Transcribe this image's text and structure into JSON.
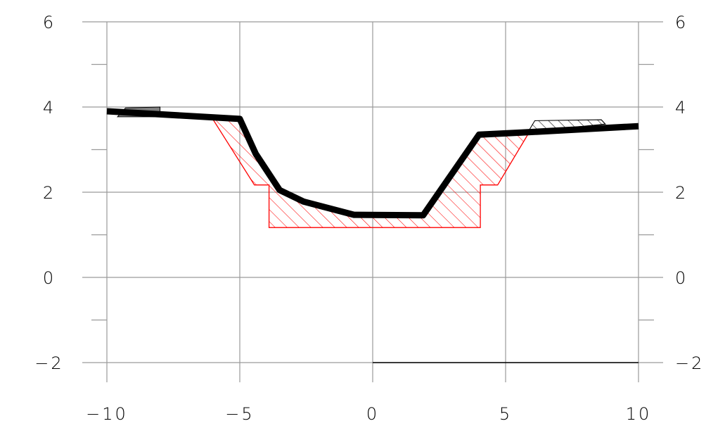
{
  "chart_data": {
    "type": "area",
    "title": "",
    "xlabel": "",
    "ylabel": "",
    "xlim": [
      -10,
      10
    ],
    "ylim": [
      -2,
      6
    ],
    "x_ticks": [
      {
        "value": -10,
        "label": "−10"
      },
      {
        "value": -5,
        "label": "−5"
      },
      {
        "value": 0,
        "label": "0"
      },
      {
        "value": 5,
        "label": "5"
      },
      {
        "value": 10,
        "label": "10"
      }
    ],
    "y_ticks": [
      {
        "value": -2,
        "label": "−2"
      },
      {
        "value": 0,
        "label": "0"
      },
      {
        "value": 2,
        "label": "2"
      },
      {
        "value": 4,
        "label": "4"
      },
      {
        "value": 6,
        "label": "6"
      }
    ],
    "y_minor_ticks": [
      -1,
      1,
      3,
      5
    ],
    "grid": true,
    "right_axis_labels": true,
    "colors": {
      "profile": "#000000",
      "cut_fill_hatch": "#ff0000",
      "embankment_hatch": "#000000",
      "gray_block": "#808080",
      "grid": "#9a9a9a"
    },
    "series": [
      {
        "kind": "profile-line",
        "x": [
          -10,
          -5.0,
          -4.4,
          -3.5,
          -2.6,
          -0.7,
          1.9,
          4.0,
          5.6,
          10
        ],
        "y": [
          3.9,
          3.72,
          2.9,
          2.05,
          1.78,
          1.47,
          1.46,
          3.35,
          3.4,
          3.55
        ]
      },
      {
        "kind": "cut-hatch",
        "x": [
          -6.0,
          -5.0,
          -4.4,
          -3.5,
          -2.6,
          -0.7,
          1.9,
          4.0,
          5.6,
          5.9,
          4.7,
          4.05,
          4.05,
          -3.9,
          -3.9,
          -4.45,
          -6.0
        ],
        "y": [
          3.7,
          3.72,
          2.9,
          2.05,
          1.78,
          1.47,
          1.46,
          3.35,
          3.4,
          3.42,
          2.17,
          2.17,
          1.17,
          1.17,
          2.17,
          2.17,
          3.7
        ]
      },
      {
        "kind": "embankment-hatch",
        "x": [
          5.85,
          6.1,
          8.6,
          8.75,
          5.85
        ],
        "y": [
          3.42,
          3.68,
          3.7,
          3.6,
          3.42
        ]
      },
      {
        "kind": "gray-blocks",
        "x": [
          -9.6,
          -8.0,
          -8.0,
          -9.3,
          -9.6
        ],
        "y": [
          3.77,
          3.77,
          4.0,
          3.98,
          3.77
        ]
      },
      {
        "kind": "baseline",
        "x": [
          0,
          10
        ],
        "y": [
          -2,
          -2
        ]
      }
    ]
  }
}
